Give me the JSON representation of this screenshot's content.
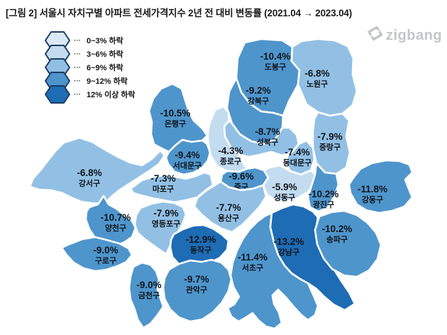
{
  "title": "[그림 2] 서울시 자치구별 아파트 전세가격지수 2년 전 대비 변동률 (2021.04 → 2023.04)",
  "logo": {
    "text": "zigbang",
    "color": "#c3c5c9"
  },
  "legend": {
    "border_color": "#1c3d63",
    "items": [
      {
        "label": "0~3% 하락",
        "color": "#dbe9f6"
      },
      {
        "label": "3~6% 하락",
        "color": "#c3dcef"
      },
      {
        "label": "6~9% 하락",
        "color": "#92c0e4"
      },
      {
        "label": "9~12% 하락",
        "color": "#4e95cc"
      },
      {
        "label": "12% 이상 하락",
        "color": "#1e6cb4"
      }
    ]
  },
  "chart_data": {
    "type": "choropleth-map",
    "title": "서울시 자치구별 아파트 전세가격지수 2년 전 대비 변동률",
    "period": "2021.04 → 2023.04",
    "unit": "%",
    "legend_position": "top-left",
    "classes": [
      "0~3% 하락",
      "3~6% 하락",
      "6~9% 하락",
      "9~12% 하락",
      "12% 이상 하락"
    ],
    "districts": [
      {
        "name": "도봉구",
        "value": -10.4,
        "label": "-10.4%",
        "level": 3
      },
      {
        "name": "노원구",
        "value": -6.8,
        "label": "-6.8%",
        "level": 2
      },
      {
        "name": "강북구",
        "value": -9.2,
        "label": "-9.2%",
        "level": 3
      },
      {
        "name": "은평구",
        "value": -10.5,
        "label": "-10.5%",
        "level": 3
      },
      {
        "name": "성북구",
        "value": -8.7,
        "label": "-8.7%",
        "level": 2
      },
      {
        "name": "중랑구",
        "value": -7.9,
        "label": "-7.9%",
        "level": 2
      },
      {
        "name": "서대문구",
        "value": -9.4,
        "label": "-9.4%",
        "level": 3
      },
      {
        "name": "종로구",
        "value": -4.3,
        "label": "-4.3%",
        "level": 1
      },
      {
        "name": "동대문구",
        "value": -7.4,
        "label": "-7.4%",
        "level": 2
      },
      {
        "name": "강서구",
        "value": -6.8,
        "label": "-6.8%",
        "level": 2
      },
      {
        "name": "마포구",
        "value": -7.3,
        "label": "-7.3%",
        "level": 2
      },
      {
        "name": "중구",
        "value": -9.6,
        "label": "-9.6%",
        "level": 3
      },
      {
        "name": "성동구",
        "value": -5.9,
        "label": "-5.9%",
        "level": 1
      },
      {
        "name": "광진구",
        "value": -10.2,
        "label": "-10.2%",
        "level": 3
      },
      {
        "name": "강동구",
        "value": -11.8,
        "label": "-11.8%",
        "level": 3
      },
      {
        "name": "양천구",
        "value": -10.7,
        "label": "-10.7%",
        "level": 3
      },
      {
        "name": "영등포구",
        "value": -7.9,
        "label": "-7.9%",
        "level": 2
      },
      {
        "name": "용산구",
        "value": -7.7,
        "label": "-7.7%",
        "level": 2
      },
      {
        "name": "구로구",
        "value": -9.0,
        "label": "-9.0%",
        "level": 3
      },
      {
        "name": "동작구",
        "value": -12.9,
        "label": "-12.9%",
        "level": 4
      },
      {
        "name": "서초구",
        "value": -11.4,
        "label": "-11.4%",
        "level": 3
      },
      {
        "name": "강남구",
        "value": -13.2,
        "label": "-13.2%",
        "level": 4
      },
      {
        "name": "송파구",
        "value": -10.2,
        "label": "-10.2%",
        "level": 3
      },
      {
        "name": "금천구",
        "value": -9.0,
        "label": "-9.0%",
        "level": 3
      },
      {
        "name": "관악구",
        "value": -9.7,
        "label": "-9.7%",
        "level": 3
      }
    ]
  }
}
